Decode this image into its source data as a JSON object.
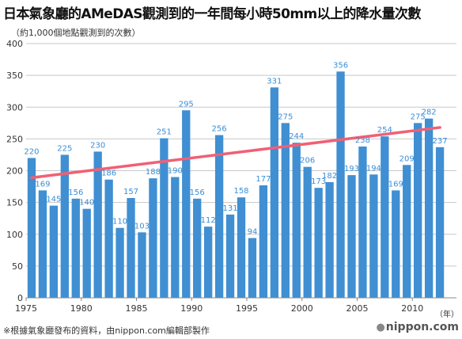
{
  "page": {
    "title": "日本氣象廳的AMeDAS觀測到的一年間每小時50mm以上的降水量次數",
    "subtitle": "（約1,000個地點觀測到的次數）",
    "footnote": "※根據氣象廳發布的資料，由nippon.com編輯部製作",
    "logo_text": "nippon.com",
    "logo_dot": "●"
  },
  "chart_data": {
    "type": "bar",
    "title": "日本氣象廳的AMeDAS觀測到的一年間每小時50mm以上的降水量次數",
    "subtitle": "（約1,000個地點觀測到的次數）",
    "xlabel": "（年）",
    "ylabel": "",
    "categories": [
      1976,
      1977,
      1978,
      1979,
      1980,
      1981,
      1982,
      1983,
      1984,
      1985,
      1986,
      1987,
      1988,
      1989,
      1990,
      1991,
      1992,
      1993,
      1994,
      1995,
      1996,
      1997,
      1998,
      1999,
      2000,
      2001,
      2002,
      2003,
      2004,
      2005,
      2006,
      2007,
      2008,
      2009,
      2010,
      2011,
      2012,
      2013
    ],
    "values": [
      220,
      169,
      145,
      225,
      156,
      140,
      230,
      186,
      110,
      157,
      103,
      188,
      251,
      190,
      295,
      156,
      112,
      256,
      131,
      158,
      94,
      177,
      331,
      275,
      244,
      206,
      173,
      182,
      356,
      193,
      238,
      194,
      254,
      169,
      209,
      275,
      282,
      237
    ],
    "ylim": [
      0,
      400
    ],
    "yticks": [
      0,
      50,
      100,
      150,
      200,
      250,
      300,
      350,
      400
    ],
    "xlim": [
      1975,
      2014
    ],
    "xticks": [
      1975,
      1980,
      1985,
      1990,
      1995,
      2000,
      2005,
      2010
    ],
    "grid": true,
    "trend": {
      "start": [
        1976,
        189
      ],
      "end": [
        2013,
        268
      ]
    },
    "colors": {
      "bar": "#3f8fd2",
      "label": "#3b8ed6",
      "trend": "#f06075",
      "grid": "#c8c8c8",
      "axis": "#888888"
    }
  }
}
